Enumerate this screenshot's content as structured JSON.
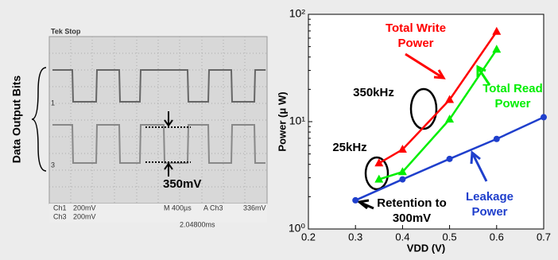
{
  "scope": {
    "ylabel": "Data Output Bits",
    "status": "Tek Stop",
    "channels": [
      "1",
      "3"
    ],
    "amplitude": "350mV",
    "readout": [
      "Ch1",
      "200mV",
      "Ch3",
      "200mV",
      "M 400µs",
      "A Ch3",
      "336mV",
      "2.04800ms"
    ]
  },
  "chart_data": {
    "type": "line",
    "xlabel": "VDD (V)",
    "ylabel": "Power (μ W)",
    "xlim": [
      0.2,
      0.7
    ],
    "xticks": [
      0.2,
      0.3,
      0.4,
      0.5,
      0.6,
      0.7
    ],
    "ylim": [
      1,
      100
    ],
    "yticks": [
      {
        "value": 1,
        "label": "10⁰"
      },
      {
        "value": 10,
        "label": "10¹"
      },
      {
        "value": 100,
        "label": "10²"
      }
    ],
    "log_y": true,
    "grid": false,
    "series": [
      {
        "name": "Total Write Power",
        "color": "#ff0000",
        "marker": "triangle",
        "x": [
          0.35,
          0.4,
          0.5,
          0.6
        ],
        "values": [
          4.1,
          5.5,
          16,
          69
        ]
      },
      {
        "name": "Total Read Power",
        "color": "#00ee00",
        "marker": "triangle",
        "x": [
          0.35,
          0.4,
          0.5,
          0.6
        ],
        "values": [
          2.9,
          3.4,
          10.5,
          47
        ]
      },
      {
        "name": "Leakage Power",
        "color": "#1f3fcc",
        "marker": "circle",
        "x": [
          0.3,
          0.4,
          0.5,
          0.6,
          0.7
        ],
        "values": [
          1.85,
          2.9,
          4.5,
          6.9,
          11
        ]
      }
    ],
    "annotations": [
      {
        "text": "350kHz"
      },
      {
        "text": "25kHz"
      },
      {
        "text": "Retention to 300mV"
      }
    ]
  }
}
